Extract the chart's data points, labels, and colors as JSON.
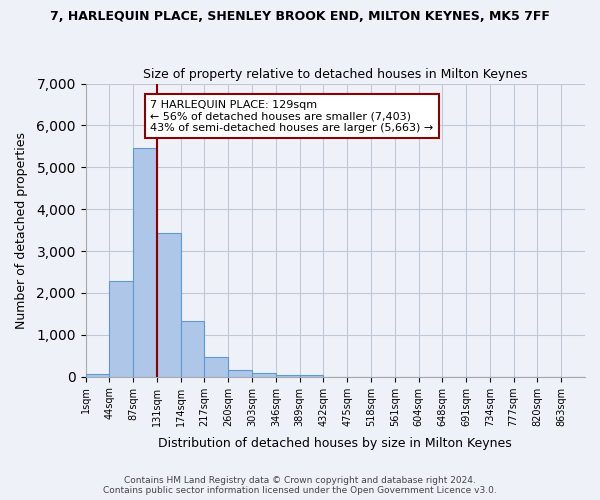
{
  "title": "7, HARLEQUIN PLACE, SHENLEY BROOK END, MILTON KEYNES, MK5 7FF",
  "subtitle": "Size of property relative to detached houses in Milton Keynes",
  "xlabel": "Distribution of detached houses by size in Milton Keynes",
  "ylabel": "Number of detached properties",
  "footer_line1": "Contains HM Land Registry data © Crown copyright and database right 2024.",
  "footer_line2": "Contains public sector information licensed under the Open Government Licence v3.0.",
  "bin_labels": [
    "1sqm",
    "44sqm",
    "87sqm",
    "131sqm",
    "174sqm",
    "217sqm",
    "260sqm",
    "303sqm",
    "346sqm",
    "389sqm",
    "432sqm",
    "475sqm",
    "518sqm",
    "561sqm",
    "604sqm",
    "648sqm",
    "691sqm",
    "734sqm",
    "777sqm",
    "820sqm",
    "863sqm"
  ],
  "bar_values": [
    75,
    2290,
    5450,
    3430,
    1320,
    470,
    155,
    85,
    50,
    35,
    0,
    0,
    0,
    0,
    0,
    0,
    0,
    0,
    0,
    0,
    0
  ],
  "bar_color": "#aec6e8",
  "bar_edgecolor": "#5b9bd5",
  "grid_color": "#c0c8d8",
  "bg_color": "#eef2f8",
  "vline_pos": 3.0,
  "vline_color": "#8b0000",
  "annotation_text": "7 HARLEQUIN PLACE: 129sqm\n← 56% of detached houses are smaller (7,403)\n43% of semi-detached houses are larger (5,663) →",
  "annotation_box_color": "#ffffff",
  "annotation_box_edgecolor": "#8b0000",
  "ylim": [
    0,
    7000
  ],
  "yticks": [
    0,
    1000,
    2000,
    3000,
    4000,
    5000,
    6000,
    7000
  ]
}
